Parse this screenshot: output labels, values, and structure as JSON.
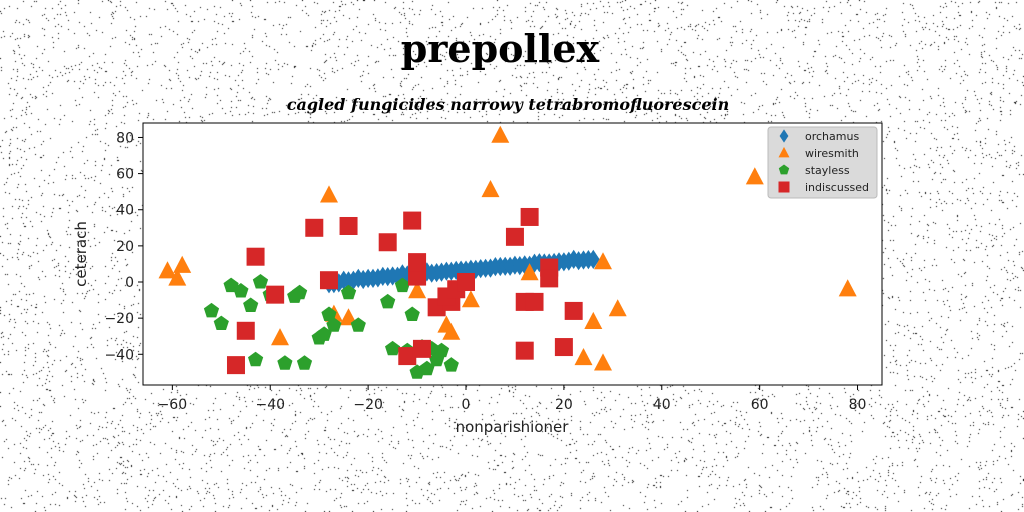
{
  "chart_data": {
    "type": "scatter",
    "title": "prepollex",
    "subtitle": "cagled fungicides narrowy tetrabromofluorescein",
    "xlabel": "nonparishioner",
    "ylabel": "ceterach",
    "xlim": [
      -66,
      85
    ],
    "ylim": [
      -57,
      88
    ],
    "xticks": [
      -60,
      -40,
      -20,
      0,
      20,
      40,
      60,
      80
    ],
    "yticks": [
      -40,
      -20,
      0,
      20,
      40,
      60,
      80
    ],
    "xtick_labels": [
      "−60",
      "−40",
      "−20",
      "0",
      "20",
      "40",
      "60",
      "80"
    ],
    "ytick_labels": [
      "−40",
      "−20",
      "0",
      "20",
      "40",
      "60",
      "80"
    ],
    "grid": false,
    "legend_position": "top-right",
    "series": [
      {
        "name": "orchamus",
        "marker": "diamond",
        "color": "#1f77b4",
        "x": [
          -28,
          -27,
          -26,
          -25,
          -24,
          -23,
          -22,
          -21,
          -20,
          -19,
          -18,
          -17,
          -16,
          -15,
          -14,
          -13,
          -12,
          -11,
          -10,
          -9,
          -8,
          -7,
          -6,
          -5,
          -4,
          -3,
          -2,
          -1,
          0,
          1,
          2,
          3,
          4,
          5,
          6,
          7,
          8,
          9,
          10,
          11,
          12,
          13,
          14,
          15,
          16,
          17,
          18,
          19,
          20,
          21,
          22,
          23,
          24,
          25,
          26
        ],
        "y": [
          -1,
          -0.9,
          -0.5,
          1,
          0.6,
          1,
          2,
          1.4,
          2,
          2,
          2.3,
          3.1,
          3,
          3.3,
          3.2,
          4.5,
          3.9,
          4.1,
          4,
          4.7,
          5.6,
          4.9,
          5.2,
          5.5,
          6,
          6,
          6.4,
          6.6,
          6.6,
          7.1,
          7,
          7.4,
          7.6,
          7.7,
          8.5,
          8.6,
          8.7,
          8.7,
          9.3,
          9.1,
          9.5,
          9.3,
          10.4,
          10.7,
          10.5,
          10.5,
          10.8,
          11.2,
          11.2,
          11.5,
          12.5,
          11.8,
          12.2,
          12.4,
          12.5
        ]
      },
      {
        "name": "wiresmith",
        "marker": "triangle",
        "color": "#ff7f0e",
        "x": [
          -61,
          -58,
          -59,
          7,
          5,
          -28,
          -38,
          -27,
          -24,
          -10,
          -4,
          -3,
          1,
          13,
          28,
          26,
          28,
          31,
          24,
          59,
          78
        ],
        "y": [
          6,
          9,
          2,
          81,
          51,
          48,
          -31,
          -18,
          -20,
          -5,
          -24,
          -28,
          -10,
          5,
          11,
          -22,
          -45,
          -15,
          -42,
          58,
          -4
        ]
      },
      {
        "name": "stayless",
        "marker": "pentagon",
        "color": "#2ca02c",
        "x": [
          -52,
          -50,
          -48,
          -46,
          -44,
          -43,
          -42,
          -40,
          -37,
          -35,
          -34,
          -33,
          -30,
          -29,
          -28,
          -27,
          -24,
          -22,
          -16,
          -15,
          -13,
          -12,
          -11,
          -10,
          -9,
          -8,
          -7,
          -6,
          -5,
          -4,
          -3
        ],
        "y": [
          -16,
          -23,
          -2,
          -5,
          -13,
          -43,
          0,
          -7,
          -45,
          -8,
          -6,
          -45,
          -31,
          -29,
          -18,
          -24,
          -6,
          -24,
          -11,
          -37,
          -2,
          -38,
          -18,
          -50,
          -36,
          -48,
          -37,
          -43,
          -38,
          -8,
          -46
        ]
      },
      {
        "name": "indiscussed",
        "marker": "square",
        "color": "#d62728",
        "x": [
          -31,
          -24,
          -11,
          -16,
          -43,
          -39,
          -45,
          -47,
          -28,
          -10,
          -10,
          -12,
          -9,
          -6,
          -3,
          -4,
          -2,
          0,
          10,
          13,
          12,
          17,
          17,
          20,
          12,
          14,
          22
        ],
        "y": [
          30,
          31,
          34,
          22,
          14,
          -7,
          -27,
          -46,
          1,
          3,
          11,
          -41,
          -37,
          -14,
          -11,
          -8,
          -4,
          0,
          25,
          36,
          -38,
          8,
          2,
          -36,
          -11,
          -11,
          -16
        ]
      }
    ]
  }
}
